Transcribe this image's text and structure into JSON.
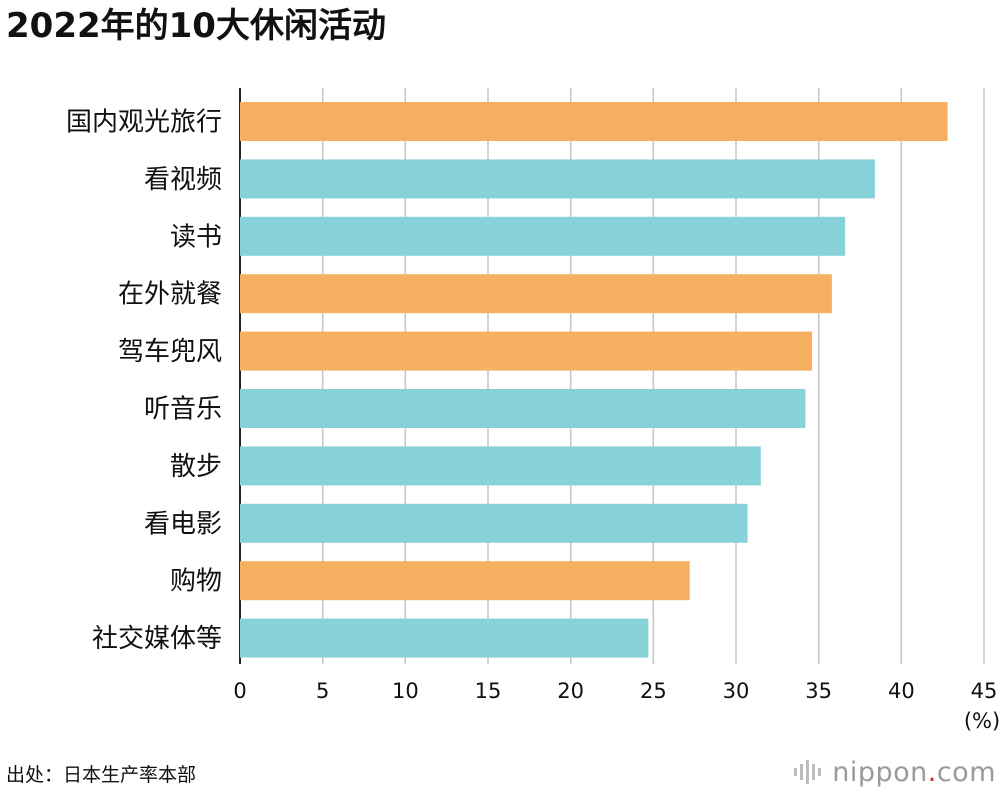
{
  "title": "2022年的10大休闲活动",
  "source": "出处：日本生产率本部",
  "brand": {
    "name": "nippon",
    "dot": ".",
    "tld": "com",
    "icon": "nippon-logo-icon"
  },
  "colors": {
    "highlight": "#f5b062",
    "normal": "#87d1d9",
    "grid": "#c8c8c8",
    "axis": "#222222"
  },
  "chart_data": {
    "type": "bar",
    "orientation": "horizontal",
    "title": "2022年的10大休闲活动",
    "xlabel": "(%)",
    "ylabel": "",
    "xlim": [
      0,
      45
    ],
    "ticks": [
      "0",
      "5",
      "10",
      "15",
      "20",
      "25",
      "30",
      "35",
      "40",
      "45"
    ],
    "grid": true,
    "categories": [
      "国内观光旅行",
      "看视频",
      "读书",
      "在外就餐",
      "驾车兜风",
      "听音乐",
      "散步",
      "看电影",
      "购物",
      "社交媒体等"
    ],
    "values": [
      42.8,
      38.4,
      36.6,
      35.8,
      34.6,
      34.2,
      31.5,
      30.7,
      27.2,
      24.7
    ],
    "highlight": [
      true,
      false,
      false,
      true,
      true,
      false,
      false,
      false,
      true,
      false
    ]
  }
}
